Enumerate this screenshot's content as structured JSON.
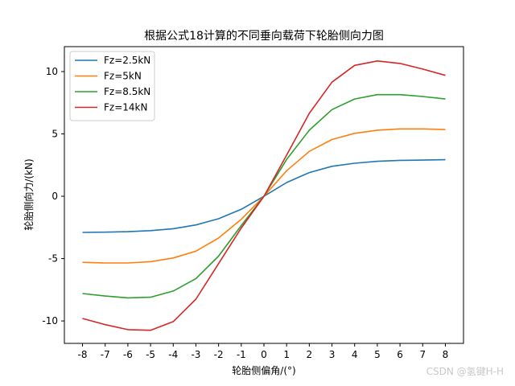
{
  "watermark": "CSDN @氢键H-H",
  "chart_data": {
    "type": "line",
    "title": "根据公式18计算的不同垂向载荷下轮胎侧向力图",
    "xlabel": "轮胎侧偏角/(°)",
    "ylabel": "轮胎侧向力/(kN)",
    "xlim": [
      -8.8,
      8.8
    ],
    "ylim": [
      -11.8,
      12.0
    ],
    "x_ticks": [
      -8,
      -7,
      -6,
      -5,
      -4,
      -3,
      -2,
      -1,
      0,
      1,
      2,
      3,
      4,
      5,
      6,
      7,
      8
    ],
    "y_ticks": [
      -10,
      -5,
      0,
      5,
      10
    ],
    "legend_position": "top-left",
    "grid": false,
    "x": [
      -8,
      -7,
      -6,
      -5,
      -4,
      -3,
      -2,
      -1,
      0,
      1,
      2,
      3,
      4,
      5,
      6,
      7,
      8
    ],
    "series": [
      {
        "name": "Fz=2.5kN",
        "color": "#1f77b4",
        "values": [
          -2.9,
          -2.88,
          -2.84,
          -2.76,
          -2.6,
          -2.3,
          -1.8,
          -1.05,
          0,
          1.1,
          1.9,
          2.4,
          2.65,
          2.8,
          2.88,
          2.9,
          2.93
        ]
      },
      {
        "name": "Fz=5kN",
        "color": "#ff7f0e",
        "values": [
          -5.3,
          -5.35,
          -5.35,
          -5.25,
          -4.95,
          -4.4,
          -3.35,
          -1.85,
          0,
          2.05,
          3.6,
          4.55,
          5.05,
          5.3,
          5.4,
          5.4,
          5.35
        ]
      },
      {
        "name": "Fz=8.5kN",
        "color": "#2ca02c",
        "values": [
          -7.8,
          -8.0,
          -8.15,
          -8.1,
          -7.6,
          -6.6,
          -4.8,
          -2.35,
          0,
          2.95,
          5.3,
          6.95,
          7.8,
          8.15,
          8.15,
          8.0,
          7.8
        ]
      },
      {
        "name": "Fz=14kN",
        "color": "#d62728",
        "values": [
          -9.8,
          -10.3,
          -10.7,
          -10.75,
          -10.05,
          -8.25,
          -5.4,
          -2.55,
          0,
          3.3,
          6.65,
          9.15,
          10.5,
          10.85,
          10.65,
          10.2,
          9.7
        ]
      }
    ]
  }
}
